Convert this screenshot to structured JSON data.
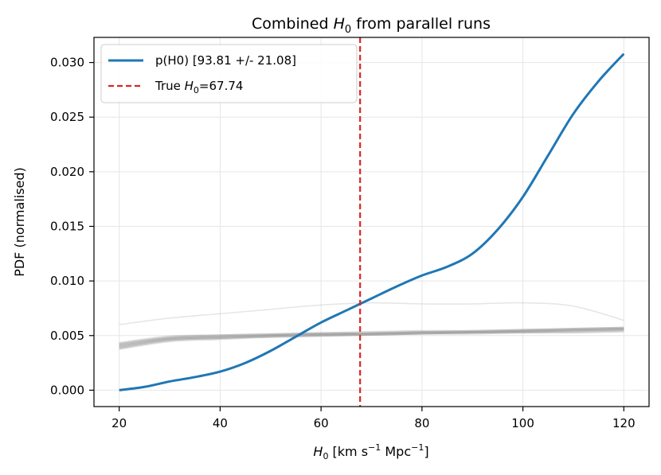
{
  "chart_data": {
    "type": "line",
    "title": "Combined H0 from parallel runs",
    "title_parts": {
      "pre": "Combined ",
      "sym": "H",
      "sub": "0",
      "post": " from parallel runs"
    },
    "xlabel": "H0 [km s^-1 Mpc^-1]",
    "xlabel_parts": {
      "sym": "H",
      "sub": "0",
      "a": " [km s",
      "sup1": "−1",
      "b": " Mpc",
      "sup2": "−1",
      "c": "]"
    },
    "ylabel": "PDF (normalised)",
    "xlim": [
      15,
      125
    ],
    "ylim": [
      -0.0015,
      0.0323
    ],
    "xticks": [
      20,
      40,
      60,
      80,
      100,
      120
    ],
    "yticks": [
      0.0,
      0.005,
      0.01,
      0.015,
      0.02,
      0.025,
      0.03
    ],
    "ytick_labels": [
      "0.000",
      "0.005",
      "0.010",
      "0.015",
      "0.020",
      "0.025",
      "0.030"
    ],
    "grid": true,
    "legend_position": "top-left",
    "series": [
      {
        "name": "p(H0) [93.81 +/- 21.08]",
        "color": "#1f77b4",
        "style": "solid",
        "x": [
          20,
          25,
          30,
          35,
          40,
          45,
          50,
          55,
          60,
          65,
          70,
          75,
          80,
          85,
          90,
          95,
          100,
          105,
          110,
          115,
          120
        ],
        "y": [
          0.0,
          0.0003,
          0.0008,
          0.0012,
          0.0017,
          0.0025,
          0.0036,
          0.0049,
          0.0062,
          0.0073,
          0.0084,
          0.0095,
          0.0105,
          0.0113,
          0.0125,
          0.0147,
          0.0177,
          0.0215,
          0.0253,
          0.0283,
          0.0308
        ]
      }
    ],
    "background_runs": {
      "color": "#999999",
      "x": [
        20,
        30,
        40,
        50,
        60,
        70,
        80,
        90,
        100,
        110,
        120
      ],
      "curves": [
        [
          0.0038,
          0.0045,
          0.0047,
          0.0049,
          0.005,
          0.0051,
          0.0052,
          0.0052,
          0.0053,
          0.0053,
          0.0054
        ],
        [
          0.0039,
          0.0046,
          0.0048,
          0.0049,
          0.005,
          0.0051,
          0.0052,
          0.0053,
          0.0053,
          0.0054,
          0.0055
        ],
        [
          0.004,
          0.0047,
          0.0048,
          0.005,
          0.0051,
          0.0051,
          0.0052,
          0.0053,
          0.0054,
          0.0055,
          0.0056
        ],
        [
          0.0041,
          0.0047,
          0.0049,
          0.005,
          0.0051,
          0.0052,
          0.0053,
          0.0053,
          0.0054,
          0.0055,
          0.0056
        ],
        [
          0.0042,
          0.0048,
          0.005,
          0.0051,
          0.0052,
          0.0052,
          0.0053,
          0.0054,
          0.0055,
          0.0056,
          0.0057
        ],
        [
          0.0043,
          0.0049,
          0.005,
          0.0051,
          0.0052,
          0.0053,
          0.0054,
          0.0054,
          0.0055,
          0.0056,
          0.0057
        ],
        [
          0.006,
          0.0066,
          0.007,
          0.0074,
          0.0078,
          0.008,
          0.0079,
          0.0079,
          0.008,
          0.0077,
          0.0064
        ]
      ]
    },
    "reference_line": {
      "label": "True H0=67.74",
      "label_parts": {
        "pre": "True ",
        "sym": "H",
        "sub": "0",
        "post": "=67.74"
      },
      "x": 67.74,
      "color": "#d62728",
      "style": "dashed"
    }
  }
}
